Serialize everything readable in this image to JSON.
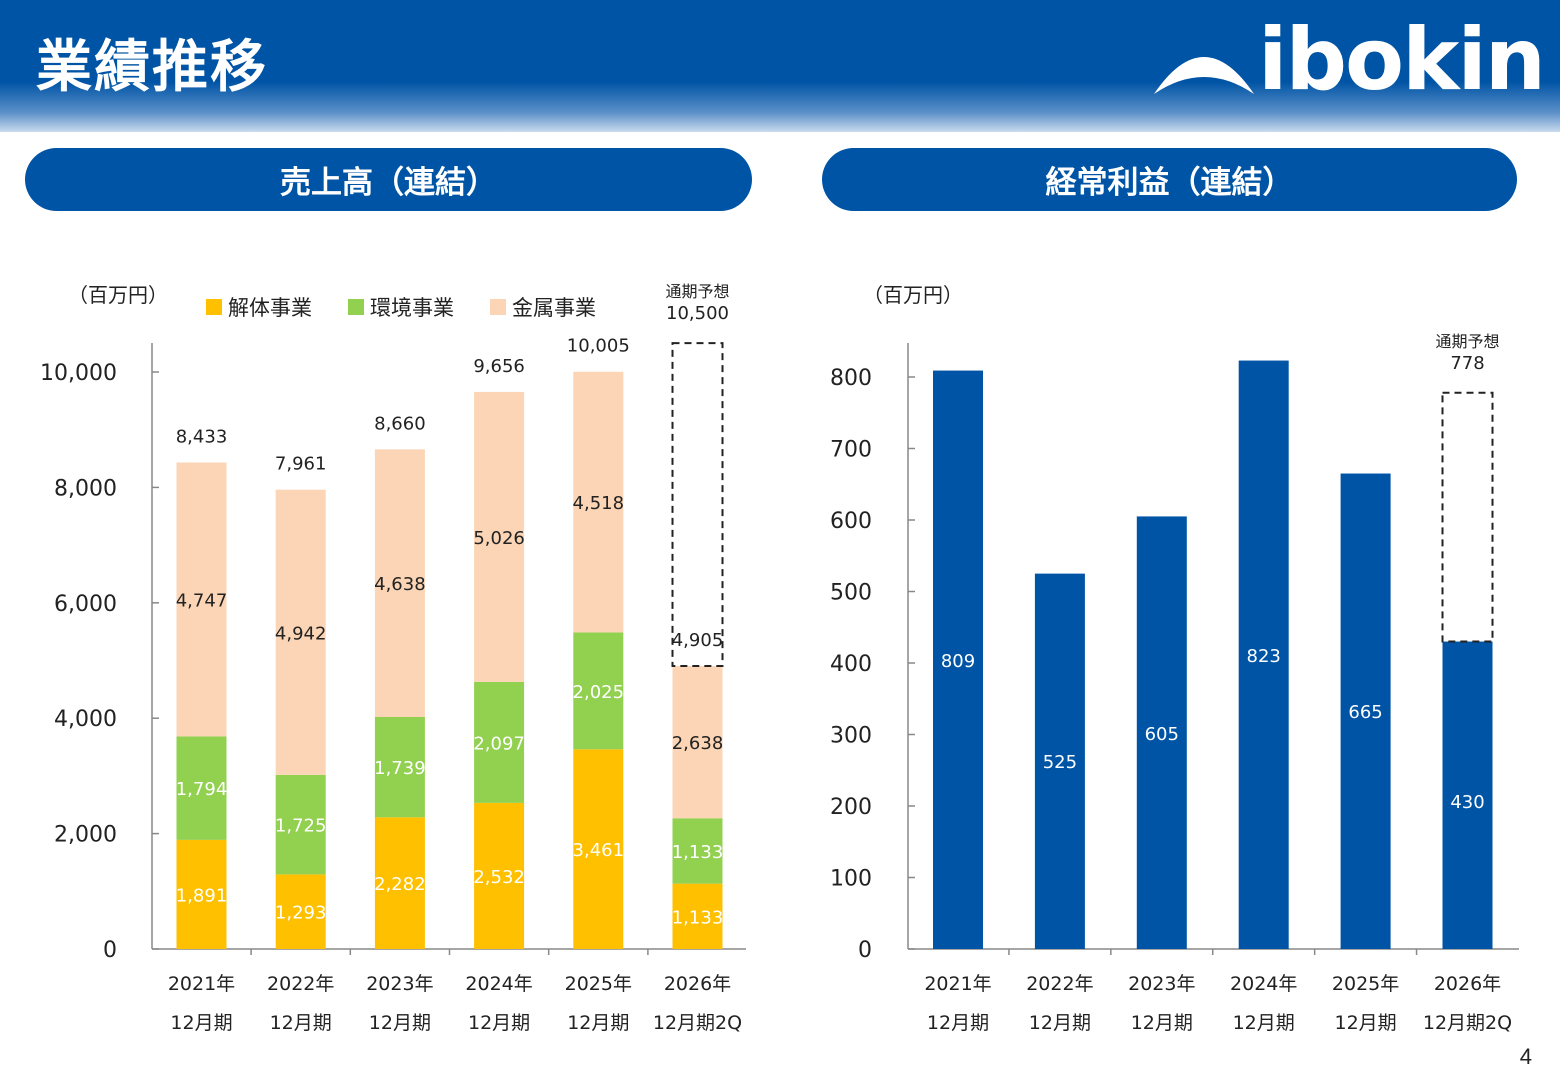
{
  "header": {
    "title": "業績推移",
    "logo_text": "ibokin"
  },
  "sections": {
    "left_title": "売上高（連結）",
    "right_title": "経常利益（連結）"
  },
  "colors": {
    "brand_blue": "#0054a5",
    "kaitai": "#ffc000",
    "kankyo": "#92d050",
    "kinzoku": "#fbd5b5"
  },
  "page_number": "4",
  "chart_data": [
    {
      "type": "bar",
      "stacked": true,
      "unit_label": "（百万円）",
      "categories": [
        [
          "2021年",
          "12月期"
        ],
        [
          "2022年",
          "12月期"
        ],
        [
          "2023年",
          "12月期"
        ],
        [
          "2024年",
          "12月期"
        ],
        [
          "2025年",
          "12月期"
        ],
        [
          "2026年",
          "12月期2Q"
        ]
      ],
      "series": [
        {
          "name": "解体事業",
          "color": "#ffc000",
          "values": [
            1891,
            1293,
            2282,
            2532,
            3461,
            1133
          ]
        },
        {
          "name": "環境事業",
          "color": "#92d050",
          "values": [
            1794,
            1725,
            1739,
            2097,
            2025,
            1133
          ]
        },
        {
          "name": "金属事業",
          "color": "#fbd5b5",
          "values": [
            4747,
            4942,
            4638,
            5026,
            4518,
            2638
          ]
        }
      ],
      "segment_labels": [
        [
          "1,891",
          "1,293",
          "2,282",
          "2,532",
          "3,461",
          "1,133"
        ],
        [
          "1,794",
          "1,725",
          "1,739",
          "2,097",
          "2,025",
          "1,133"
        ],
        [
          "4,747",
          "4,942",
          "4,638",
          "5,026",
          "4,518",
          "2,638"
        ]
      ],
      "totals": [
        8433,
        7961,
        8660,
        9656,
        10005,
        4905
      ],
      "total_labels": [
        "8,433",
        "7,961",
        "8,660",
        "9,656",
        "10,005",
        "4,905"
      ],
      "forecast": {
        "category_index": 5,
        "label_line1": "通期予想",
        "label_line2": "10,500",
        "value": 10500
      },
      "ylim": [
        0,
        10000
      ],
      "yticks": [
        0,
        2000,
        4000,
        6000,
        8000,
        10000
      ],
      "ytick_labels": [
        "0",
        "2,000",
        "4,000",
        "6,000",
        "8,000",
        "10,000"
      ],
      "legend_position": "top"
    },
    {
      "type": "bar",
      "unit_label": "（百万円）",
      "categories": [
        [
          "2021年",
          "12月期"
        ],
        [
          "2022年",
          "12月期"
        ],
        [
          "2023年",
          "12月期"
        ],
        [
          "2024年",
          "12月期"
        ],
        [
          "2025年",
          "12月期"
        ],
        [
          "2026年",
          "12月期2Q"
        ]
      ],
      "values": [
        809,
        525,
        605,
        823,
        665,
        430
      ],
      "value_labels": [
        "809",
        "525",
        "605",
        "823",
        "665",
        "430"
      ],
      "color": "#0054a5",
      "forecast": {
        "category_index": 5,
        "label_line1": "通期予想",
        "label_line2": "778",
        "value": 778
      },
      "ylim": [
        0,
        800
      ],
      "yticks": [
        0,
        100,
        200,
        300,
        400,
        500,
        600,
        700,
        800
      ],
      "ytick_labels": [
        "0",
        "100",
        "200",
        "300",
        "400",
        "500",
        "600",
        "700",
        "800"
      ]
    }
  ]
}
